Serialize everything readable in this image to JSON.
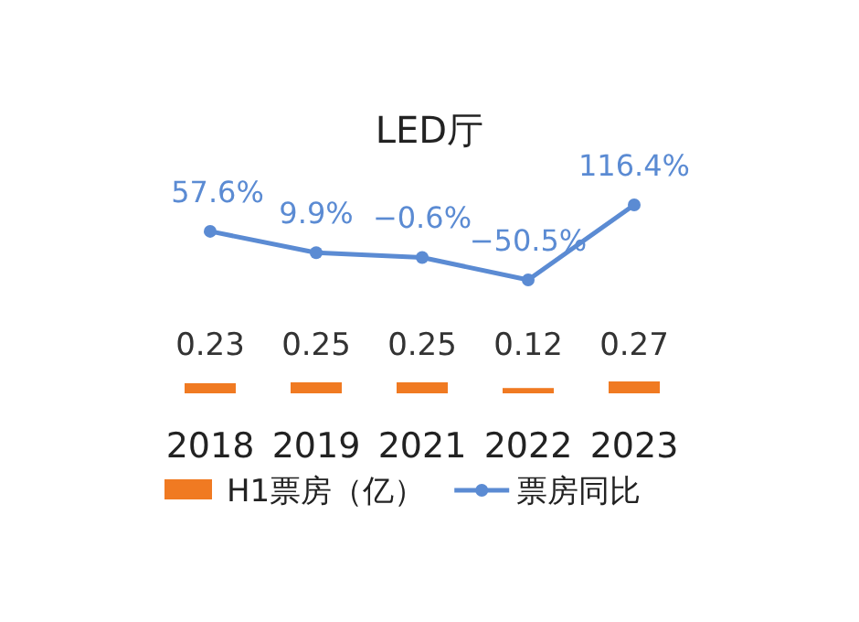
{
  "chart_data": [
    {
      "type": "line",
      "title": "LED厅",
      "categories": [
        null,
        null,
        null,
        null,
        null
      ],
      "legend": "bottom",
      "marker": "circle",
      "series": [
        {
          "name": "票房同比",
          "color": "#5b8bd3",
          "values": [
            57.6,
            9.9,
            -0.6,
            -50.5,
            116.4
          ],
          "value_labels": [
            "57.6%",
            "9.9%",
            "−0.6%",
            "−50.5%",
            "116.4%"
          ]
        }
      ]
    },
    {
      "type": "bar",
      "categories": [
        "2018",
        "2019",
        "2021",
        "2022",
        "2023"
      ],
      "legend": "bottom",
      "data_labels": true,
      "series": [
        {
          "name": "H1票房（亿）",
          "color": "#f07a22",
          "values": [
            0.23,
            0.25,
            0.25,
            0.12,
            0.27
          ]
        }
      ]
    }
  ]
}
